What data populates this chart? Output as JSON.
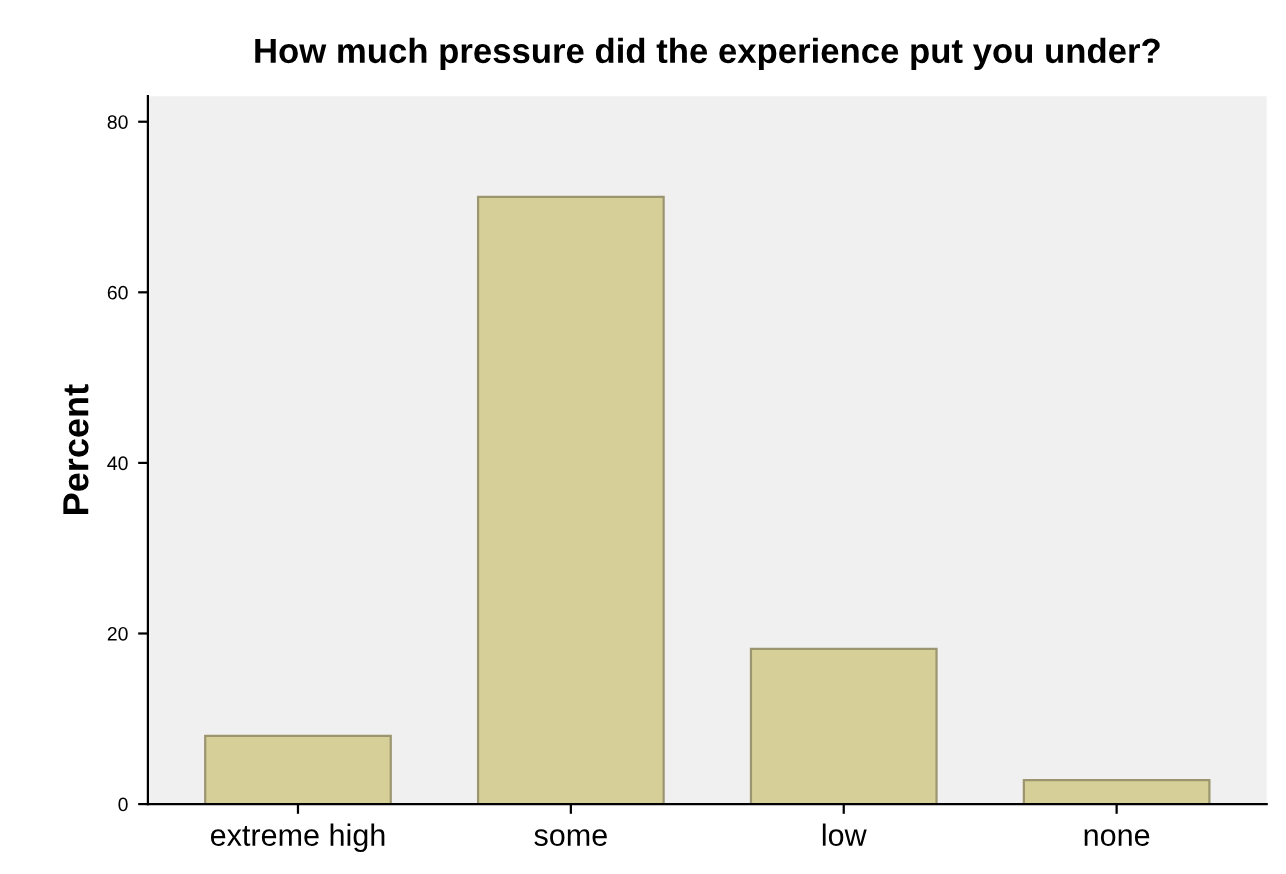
{
  "chart_data": {
    "type": "bar",
    "title": "How much pressure did the experience put you under?",
    "ylabel": "Percent",
    "categories": [
      "extreme high",
      "some",
      "low",
      "none"
    ],
    "values": [
      8.0,
      71.2,
      18.2,
      2.8
    ],
    "color": "#d6cf97",
    "ylim": [
      0,
      83
    ],
    "yticks": [
      0,
      20,
      40,
      60,
      80
    ],
    "grid": false,
    "legend": false
  }
}
